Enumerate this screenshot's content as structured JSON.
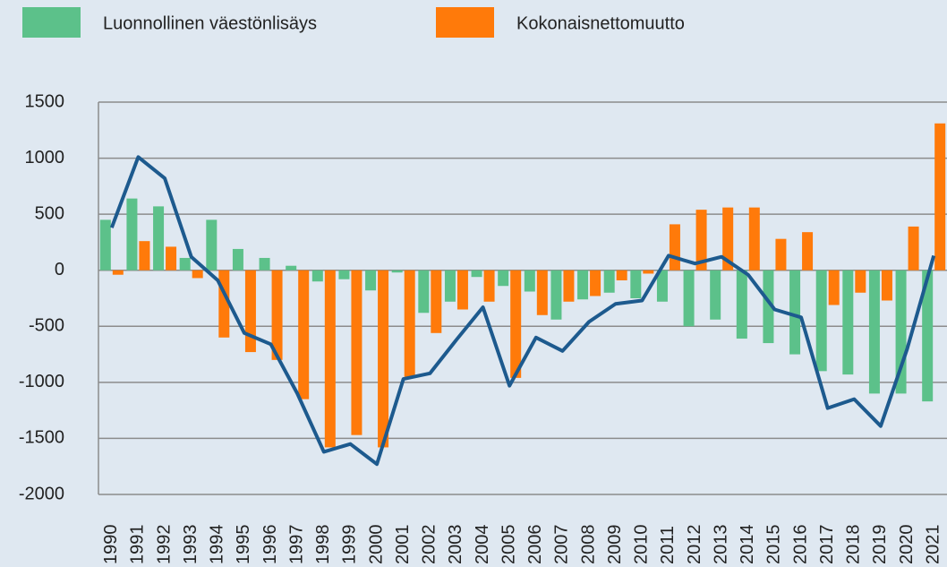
{
  "chart_data": {
    "type": "bar-line",
    "categories": [
      "1990",
      "1991",
      "1992",
      "1993",
      "1994",
      "1995",
      "1996",
      "1997",
      "1998",
      "1999",
      "2000",
      "2001",
      "2002",
      "2003",
      "2004",
      "2005",
      "2006",
      "2007",
      "2008",
      "2009",
      "2010",
      "2011",
      "2012",
      "2013",
      "2014",
      "2015",
      "2016",
      "2017",
      "2018",
      "2019",
      "2020",
      "2021"
    ],
    "series": [
      {
        "name": "Luonnollinen väestönlisäys",
        "color": "#5cc18a",
        "type": "bar",
        "values": [
          450,
          640,
          570,
          110,
          450,
          190,
          110,
          40,
          -100,
          -80,
          -180,
          -20,
          -380,
          -280,
          -60,
          -140,
          -190,
          -440,
          -260,
          -200,
          -250,
          -280,
          -500,
          -440,
          -610,
          -650,
          -750,
          -900,
          -930,
          -1100,
          -1100,
          -1170
        ]
      },
      {
        "name": "Kokonaisnettomuutto",
        "color": "#ff7a0a",
        "type": "bar",
        "values": [
          -40,
          260,
          210,
          -70,
          -600,
          -730,
          -800,
          -1150,
          -1580,
          -1470,
          -1580,
          -950,
          -560,
          -350,
          -280,
          -960,
          -400,
          -280,
          -230,
          -90,
          -30,
          410,
          540,
          560,
          560,
          280,
          340,
          -310,
          -200,
          -270,
          390,
          1310
        ]
      },
      {
        "color": "#1d5a8e",
        "type": "line",
        "values": [
          380,
          1010,
          820,
          120,
          -90,
          -560,
          -660,
          -1100,
          -1620,
          -1550,
          -1730,
          -970,
          -920,
          -620,
          -330,
          -1030,
          -600,
          -720,
          -460,
          -300,
          -270,
          130,
          60,
          120,
          -40,
          -350,
          -420,
          -1230,
          -1150,
          -1390,
          -700,
          130
        ]
      }
    ],
    "ylim": [
      -2000,
      1500
    ],
    "yticks": [
      -2000,
      -1500,
      -1000,
      -500,
      0,
      500,
      1000,
      1500
    ],
    "grid": true
  }
}
